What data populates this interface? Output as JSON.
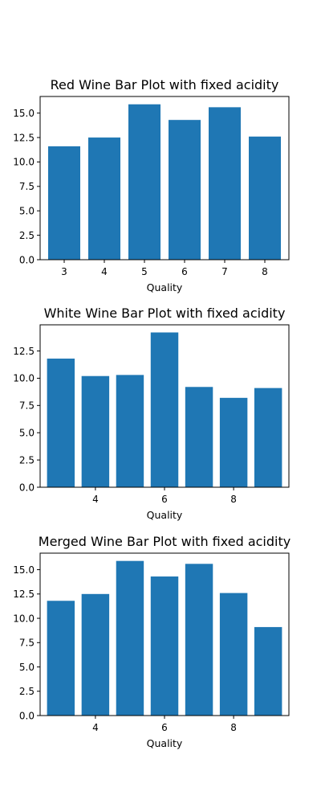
{
  "chart_data": [
    {
      "type": "bar",
      "title": "Red Wine Bar Plot with fixed acidity",
      "xlabel": "Quality",
      "ylabel": "",
      "x": [
        3,
        4,
        5,
        6,
        7,
        8
      ],
      "values": [
        11.6,
        12.5,
        15.9,
        14.3,
        15.6,
        12.6
      ],
      "xticks": [
        3,
        4,
        5,
        6,
        7,
        8
      ],
      "xlim": [
        2.4,
        8.6
      ],
      "yticks": [
        "0.0",
        "2.5",
        "5.0",
        "7.5",
        "10.0",
        "12.5",
        "15.0"
      ],
      "ylim": [
        0,
        16.7
      ],
      "color": "#1f77b4"
    },
    {
      "type": "bar",
      "title": "White Wine Bar Plot with fixed acidity",
      "xlabel": "Quality",
      "ylabel": "",
      "x": [
        3,
        4,
        5,
        6,
        7,
        8,
        9
      ],
      "values": [
        11.8,
        10.2,
        10.3,
        14.2,
        9.2,
        8.2,
        9.1
      ],
      "xticks": [
        4,
        6,
        8
      ],
      "xlim": [
        2.4,
        9.6
      ],
      "yticks": [
        "0.0",
        "2.5",
        "5.0",
        "7.5",
        "10.0",
        "12.5"
      ],
      "ylim": [
        0,
        14.9
      ],
      "color": "#1f77b4"
    },
    {
      "type": "bar",
      "title": "Merged Wine Bar Plot with fixed acidity",
      "xlabel": "Quality",
      "ylabel": "",
      "x": [
        3,
        4,
        5,
        6,
        7,
        8,
        9
      ],
      "values": [
        11.8,
        12.5,
        15.9,
        14.3,
        15.6,
        12.6,
        9.1
      ],
      "xticks": [
        4,
        6,
        8
      ],
      "xlim": [
        2.4,
        9.6
      ],
      "yticks": [
        "0.0",
        "2.5",
        "5.0",
        "7.5",
        "10.0",
        "12.5",
        "15.0"
      ],
      "ylim": [
        0,
        16.7
      ],
      "color": "#1f77b4"
    }
  ]
}
